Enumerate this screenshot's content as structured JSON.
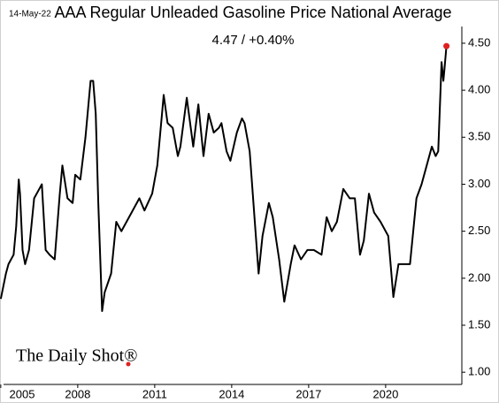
{
  "chart_data": {
    "type": "line",
    "date": "14-May-22",
    "title": "AAA Regular Unleaded Gasoline Price National Average",
    "annotation": "4.47  /  +0.40%",
    "watermark": "The Daily Shot®",
    "color": "#000000",
    "marker_color": "#e02020",
    "xlim": [
      2004.97,
      2022.97
    ],
    "ylim": [
      0.87,
      4.96
    ],
    "xticks": [
      2005,
      2008,
      2011,
      2014,
      2017,
      2020
    ],
    "yticks": [
      {
        "value": 1,
        "label": "1.00"
      },
      {
        "value": 1.5,
        "label": "1.50"
      },
      {
        "value": 2,
        "label": "2.00"
      },
      {
        "value": 2.5,
        "label": "2.50"
      },
      {
        "value": 3,
        "label": "3.00"
      },
      {
        "value": 3.5,
        "label": "3.50"
      },
      {
        "value": 4,
        "label": "4.00"
      },
      {
        "value": 4.5,
        "label": "4.50"
      }
    ],
    "x": [
      2005.0,
      2005.2,
      2005.3,
      2005.5,
      2005.6,
      2005.7,
      2005.75,
      2005.85,
      2005.95,
      2006.1,
      2006.3,
      2006.5,
      2006.6,
      2006.75,
      2006.9,
      2007.1,
      2007.3,
      2007.4,
      2007.6,
      2007.8,
      2007.9,
      2008.1,
      2008.3,
      2008.5,
      2008.6,
      2008.7,
      2008.8,
      2008.95,
      2009.05,
      2009.3,
      2009.5,
      2009.7,
      2009.9,
      2010.1,
      2010.4,
      2010.6,
      2010.9,
      2011.1,
      2011.3,
      2011.35,
      2011.5,
      2011.7,
      2011.9,
      2012.0,
      2012.25,
      2012.5,
      2012.7,
      2012.9,
      2013.1,
      2013.3,
      2013.5,
      2013.6,
      2013.8,
      2013.95,
      2014.2,
      2014.4,
      2014.5,
      2014.7,
      2014.9,
      2015.05,
      2015.2,
      2015.45,
      2015.6,
      2015.85,
      2016.05,
      2016.3,
      2016.45,
      2016.7,
      2016.95,
      2017.2,
      2017.5,
      2017.7,
      2017.9,
      2018.1,
      2018.35,
      2018.6,
      2018.8,
      2019.0,
      2019.15,
      2019.35,
      2019.55,
      2019.8,
      2020.1,
      2020.3,
      2020.5,
      2020.8,
      2020.95,
      2021.2,
      2021.4,
      2021.6,
      2021.8,
      2021.95,
      2022.05,
      2022.18,
      2022.25,
      2022.3,
      2022.37
    ],
    "values": [
      1.78,
      2.05,
      2.15,
      2.25,
      2.55,
      3.05,
      2.9,
      2.3,
      2.15,
      2.3,
      2.85,
      2.95,
      3.0,
      2.3,
      2.25,
      2.2,
      2.9,
      3.2,
      2.85,
      2.8,
      3.1,
      3.05,
      3.5,
      4.1,
      4.1,
      3.75,
      2.8,
      1.65,
      1.85,
      2.05,
      2.6,
      2.5,
      2.6,
      2.7,
      2.85,
      2.72,
      2.9,
      3.2,
      3.8,
      3.95,
      3.65,
      3.6,
      3.3,
      3.4,
      3.92,
      3.4,
      3.85,
      3.3,
      3.75,
      3.55,
      3.6,
      3.65,
      3.35,
      3.25,
      3.55,
      3.7,
      3.65,
      3.35,
      2.6,
      2.05,
      2.45,
      2.8,
      2.65,
      2.2,
      1.75,
      2.15,
      2.35,
      2.2,
      2.3,
      2.3,
      2.25,
      2.65,
      2.5,
      2.6,
      2.95,
      2.85,
      2.85,
      2.25,
      2.4,
      2.9,
      2.7,
      2.6,
      2.45,
      1.8,
      2.15,
      2.15,
      2.15,
      2.85,
      3.0,
      3.2,
      3.4,
      3.3,
      3.35,
      4.3,
      4.1,
      4.25,
      4.47
    ]
  }
}
